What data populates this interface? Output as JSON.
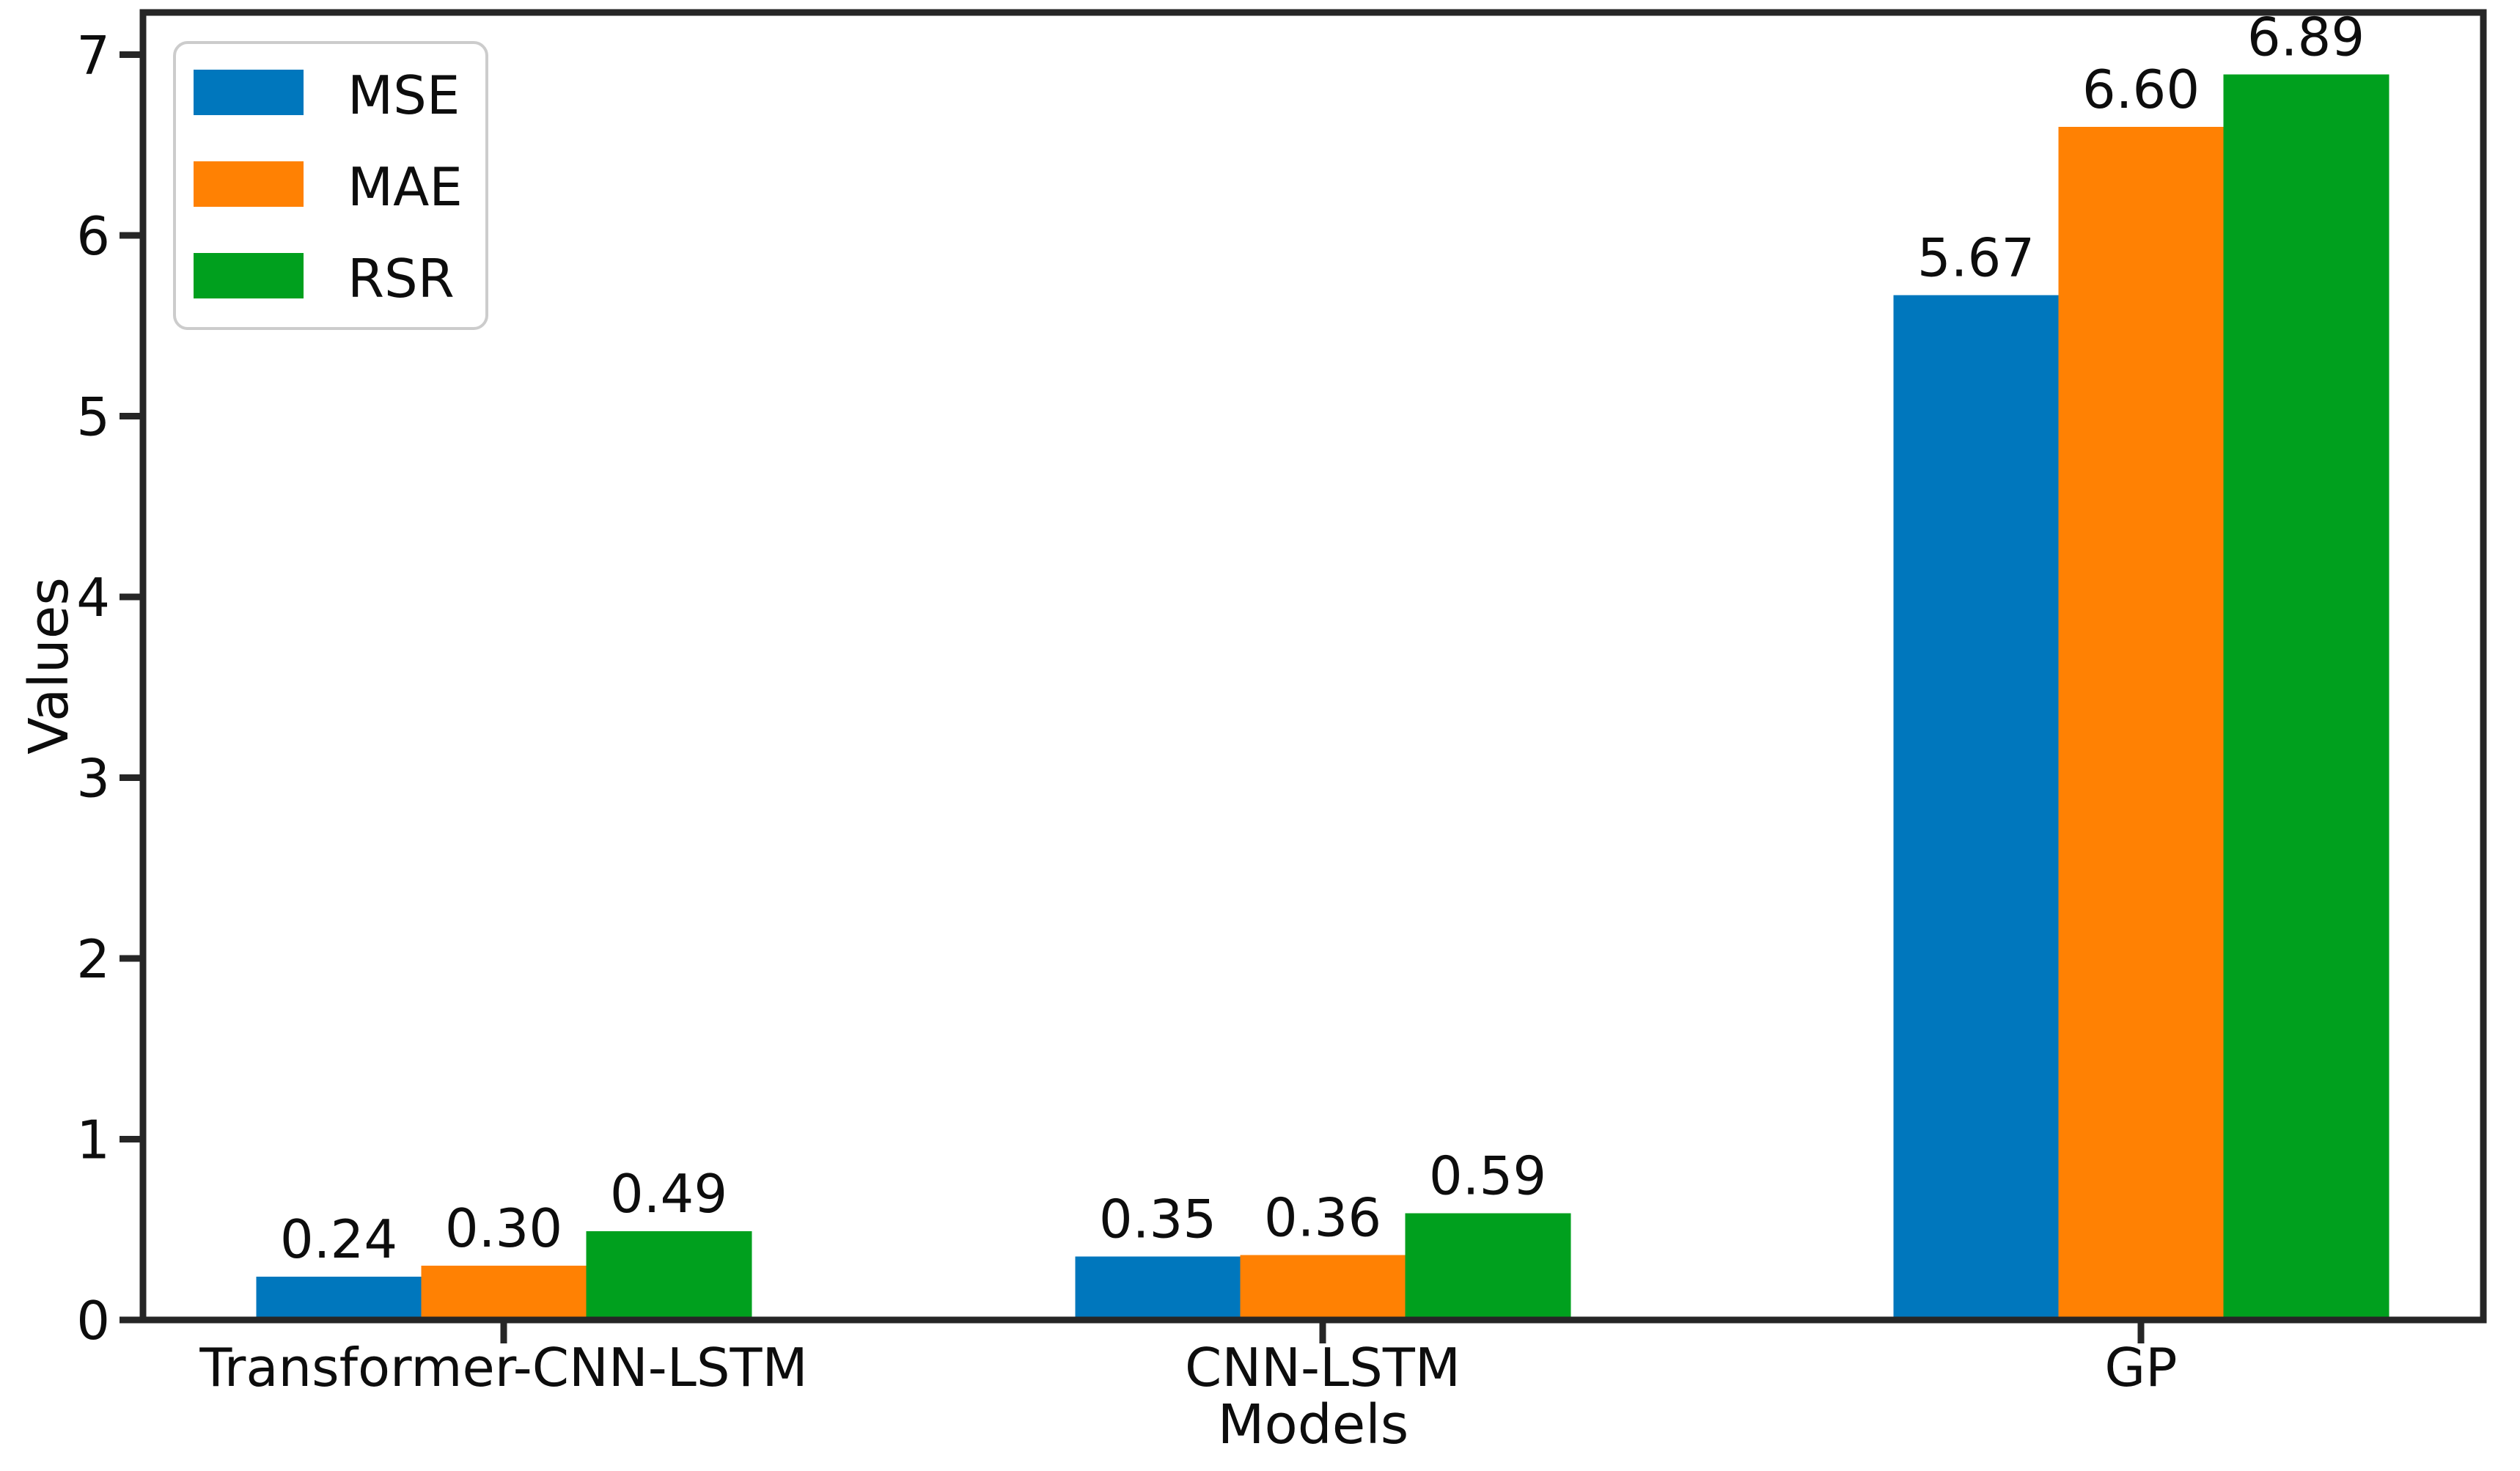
{
  "chart_data": {
    "type": "bar",
    "title": "",
    "xlabel": "Models",
    "ylabel": "Values",
    "categories": [
      "Transformer-CNN-LSTM",
      "CNN-LSTM",
      "GP"
    ],
    "series": [
      {
        "name": "MSE",
        "color": "#0077bd",
        "values": [
          0.24,
          0.35,
          5.67
        ],
        "labels": [
          "0.24",
          "0.35",
          "5.67"
        ]
      },
      {
        "name": "MAE",
        "color": "#ff8103",
        "values": [
          0.3,
          0.36,
          6.6
        ],
        "labels": [
          "0.30",
          "0.36",
          "6.60"
        ]
      },
      {
        "name": "RSR",
        "color": "#00a01e",
        "values": [
          0.49,
          0.59,
          6.89
        ],
        "labels": [
          "0.49",
          "0.59",
          "6.89"
        ]
      }
    ],
    "yticks": [
      "0",
      "1",
      "2",
      "3",
      "4",
      "5",
      "6",
      "7"
    ],
    "ylim": [
      0,
      7.23
    ],
    "grid": false,
    "legend_position": "upper left",
    "background_color": "#ffffff",
    "axis_color": "#262626"
  }
}
